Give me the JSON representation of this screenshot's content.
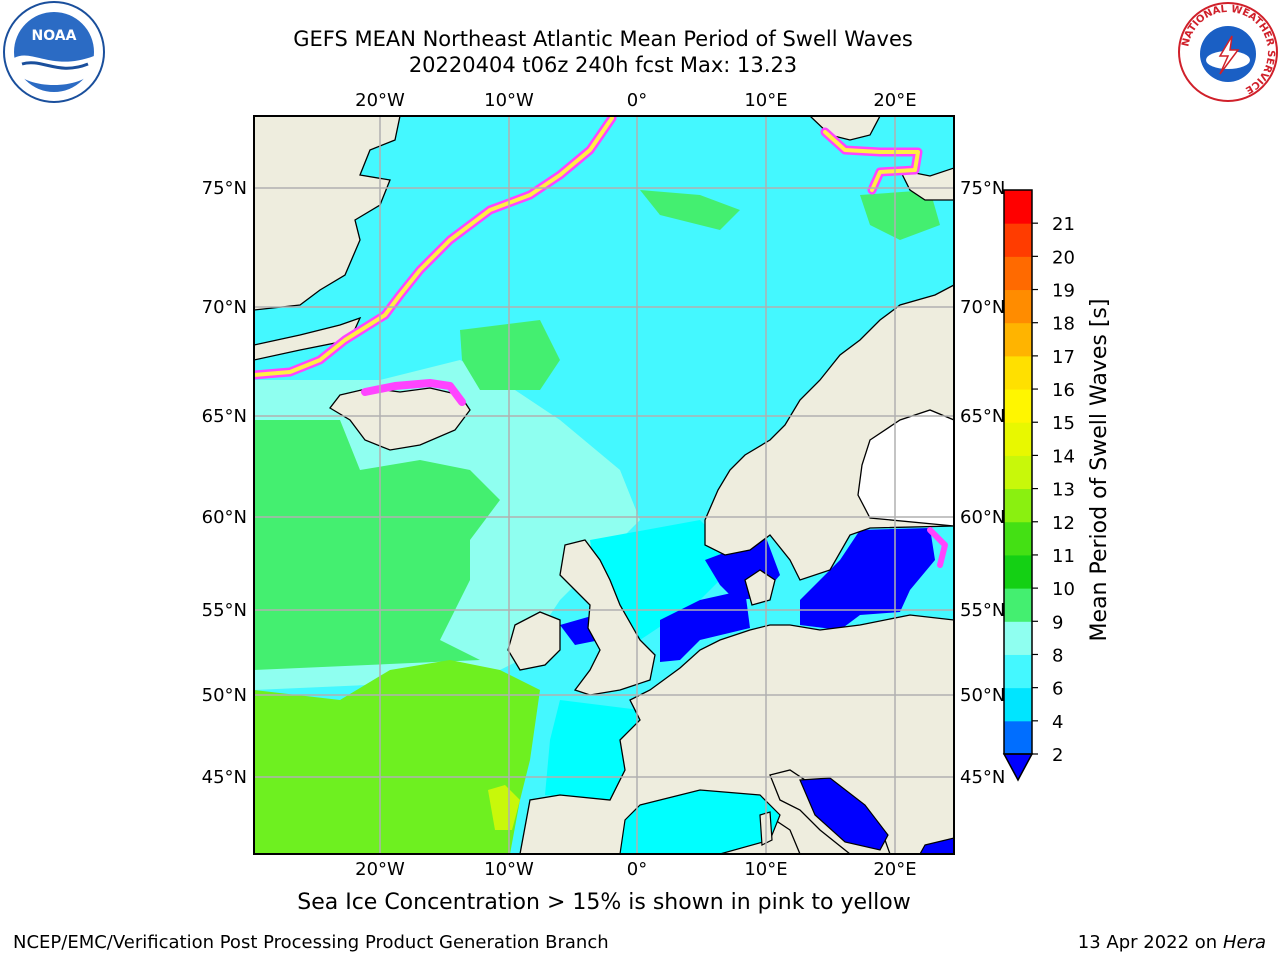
{
  "title": {
    "line1": "GEFS MEAN Northeast Atlantic Mean Period of Swell Waves",
    "line2": "20220404 t06z 240h fcst   Max: 13.23"
  },
  "map": {
    "lon_labels_top": [
      "20°W",
      "10°W",
      "0°",
      "10°E",
      "20°E"
    ],
    "lon_labels_bottom": [
      "20°W",
      "10°W",
      "0°",
      "10°E",
      "20°E"
    ],
    "lat_labels_left": [
      "75°N",
      "70°N",
      "65°N",
      "60°N",
      "55°N",
      "50°N",
      "45°N"
    ],
    "lat_labels_right": [
      "75°N",
      "70°N",
      "65°N",
      "60°N",
      "55°N",
      "50°N",
      "45°N"
    ],
    "colors": {
      "land": "#eeedde",
      "ocean_cyan": "#00ffff",
      "ocean_light_cyan": "#8ffff0",
      "ocean_cyan2": "#44f8ff",
      "ocean_green": "#44ef70",
      "ocean_lime": "#6ef020",
      "shallow_blue": "#0000ff",
      "ice_pink": "#ff44ff",
      "ice_yellow": "#ffee44",
      "grid": "#b0b0b0"
    }
  },
  "colorbar": {
    "label": "Mean Period of Swell Waves [s]",
    "ticks": [
      "2",
      "4",
      "6",
      "8",
      "9",
      "10",
      "11",
      "12",
      "13",
      "14",
      "15",
      "16",
      "17",
      "18",
      "19",
      "20",
      "21"
    ],
    "bands": [
      "#006eff",
      "#00e5ff",
      "#44f8ff",
      "#8ffff0",
      "#44ef70",
      "#14d014",
      "#44e014",
      "#8af010",
      "#c8f80a",
      "#e8f800",
      "#fff600",
      "#ffe000",
      "#ffb400",
      "#ff8c00",
      "#ff6a00",
      "#ff3c00",
      "#ff0000"
    ],
    "under_color": "#0000ff"
  },
  "subnote": "Sea Ice Concentration > 15% is shown in pink to yellow",
  "footer": {
    "left": "NCEP/EMC/Verification Post Processing Product Generation Branch",
    "date": "13 Apr 2022 on ",
    "machine": "Hera"
  },
  "logos": {
    "noaa_text": "NOAA",
    "nws_ring_text": "NATIONAL WEATHER SERVICE"
  }
}
